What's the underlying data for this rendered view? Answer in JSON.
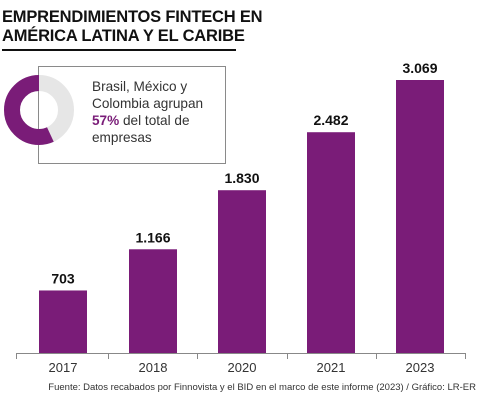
{
  "title_line1": "EMPRENDIMIENTOS FINTECH EN",
  "title_line2": "AMÉRICA LATINA Y EL CARIBE",
  "callout": {
    "line1": "Brasil, México y",
    "line2": "Colombia agrupan",
    "highlight": "57%",
    "line3_rest": " del total de",
    "line4": "empresas",
    "share_value": 57,
    "share_color": "#7a1c78",
    "rest_color": "#e6e6e6"
  },
  "source": "Fuente: Datos recabados por Finnovista y el BID en el marco de este informe (2023) / Gráfico: LR-ER",
  "chart_data": {
    "type": "bar",
    "categories": [
      "2017",
      "2018",
      "2020",
      "2021",
      "2023"
    ],
    "values": [
      703,
      1166,
      1830,
      2482,
      3069
    ],
    "value_labels": [
      "703",
      "1.166",
      "1.830",
      "2.482",
      "3.069"
    ],
    "bar_color": "#7a1c78",
    "ylim": [
      0,
      3069
    ],
    "grid": false
  }
}
